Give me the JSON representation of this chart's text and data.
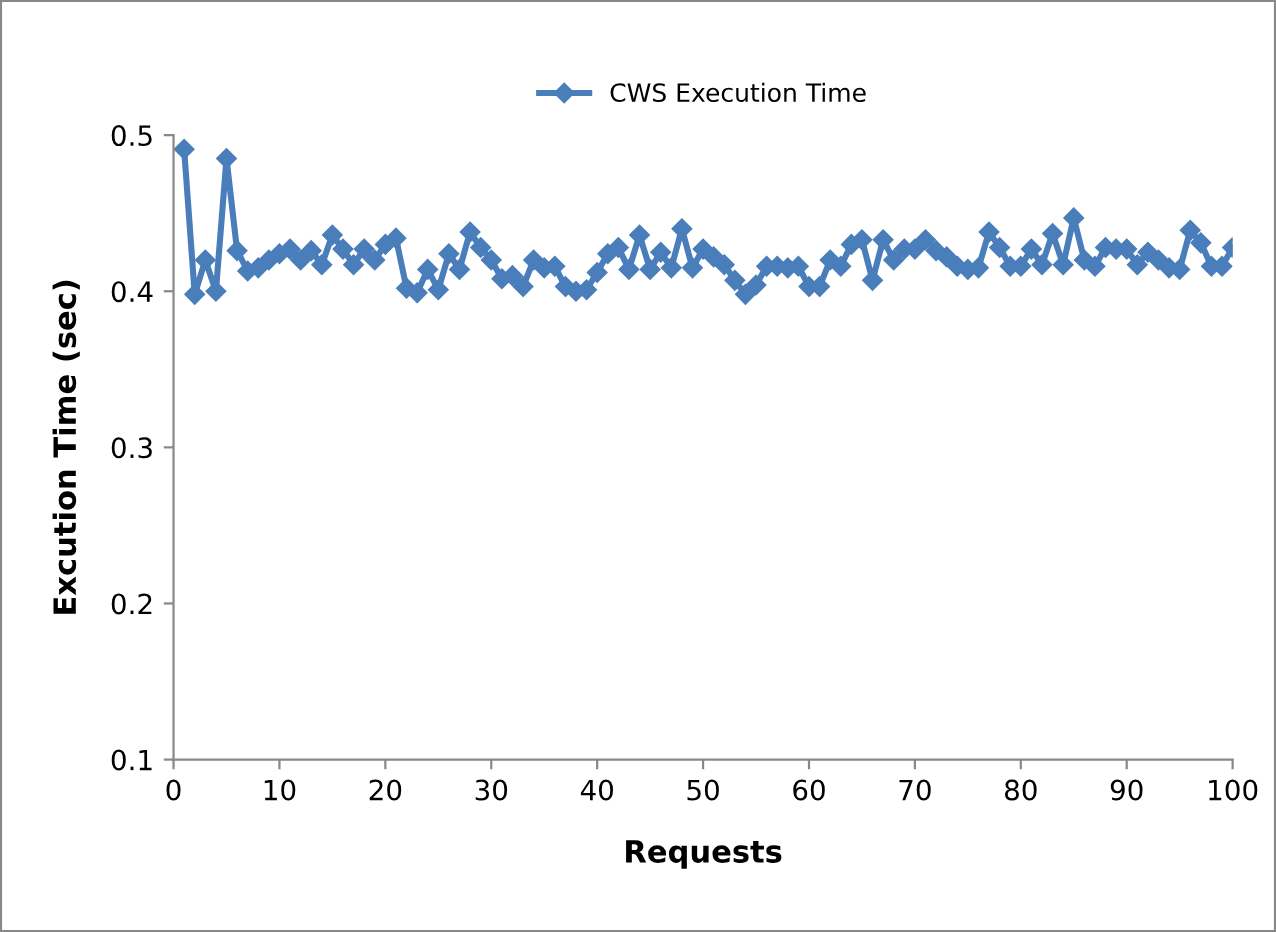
{
  "chart_data": {
    "type": "line",
    "xlabel": "Requests",
    "ylabel": "Excution Time (sec)",
    "xlim": [
      0,
      100
    ],
    "xticks": [
      0,
      10,
      20,
      30,
      40,
      50,
      60,
      70,
      80,
      90,
      100
    ],
    "ylim": [
      0.1,
      0.5
    ],
    "yticks": [
      0.1,
      0.2,
      0.3,
      0.4,
      0.5
    ],
    "grid": false,
    "legend": "top",
    "marker": "diamond",
    "line_style": "solid",
    "x": [
      1,
      2,
      3,
      4,
      5,
      6,
      7,
      8,
      9,
      10,
      11,
      12,
      13,
      14,
      15,
      16,
      17,
      18,
      19,
      20,
      21,
      22,
      23,
      24,
      25,
      26,
      27,
      28,
      29,
      30,
      31,
      32,
      33,
      34,
      35,
      36,
      37,
      38,
      39,
      40,
      41,
      42,
      43,
      44,
      45,
      46,
      47,
      48,
      49,
      50,
      51,
      52,
      53,
      54,
      55,
      56,
      57,
      58,
      59,
      60,
      61,
      62,
      63,
      64,
      65,
      66,
      67,
      68,
      69,
      70,
      71,
      72,
      73,
      74,
      75,
      76,
      77,
      78,
      79,
      80,
      81,
      82,
      83,
      84,
      85,
      86,
      87,
      88,
      89,
      90,
      91,
      92,
      93,
      94,
      95,
      96,
      97,
      98,
      99,
      100
    ],
    "series": [
      {
        "name": "CWS Execution Time",
        "color": "#4a7ebb",
        "values": [
          0.491,
          0.398,
          0.42,
          0.4,
          0.485,
          0.426,
          0.413,
          0.415,
          0.42,
          0.424,
          0.427,
          0.42,
          0.426,
          0.417,
          0.436,
          0.427,
          0.417,
          0.427,
          0.42,
          0.43,
          0.434,
          0.402,
          0.399,
          0.414,
          0.401,
          0.424,
          0.414,
          0.438,
          0.428,
          0.42,
          0.408,
          0.41,
          0.403,
          0.42,
          0.415,
          0.416,
          0.403,
          0.4,
          0.401,
          0.412,
          0.424,
          0.428,
          0.414,
          0.436,
          0.414,
          0.425,
          0.415,
          0.44,
          0.415,
          0.427,
          0.422,
          0.417,
          0.407,
          0.398,
          0.404,
          0.416,
          0.416,
          0.415,
          0.416,
          0.403,
          0.403,
          0.42,
          0.416,
          0.43,
          0.433,
          0.407,
          0.433,
          0.42,
          0.427,
          0.427,
          0.433,
          0.426,
          0.422,
          0.416,
          0.414,
          0.415,
          0.438,
          0.428,
          0.416,
          0.416,
          0.427,
          0.417,
          0.437,
          0.417,
          0.447,
          0.42,
          0.416,
          0.428,
          0.427,
          0.427,
          0.417,
          0.425,
          0.42,
          0.415,
          0.414,
          0.439,
          0.431,
          0.416,
          0.416,
          0.428
        ]
      }
    ]
  }
}
